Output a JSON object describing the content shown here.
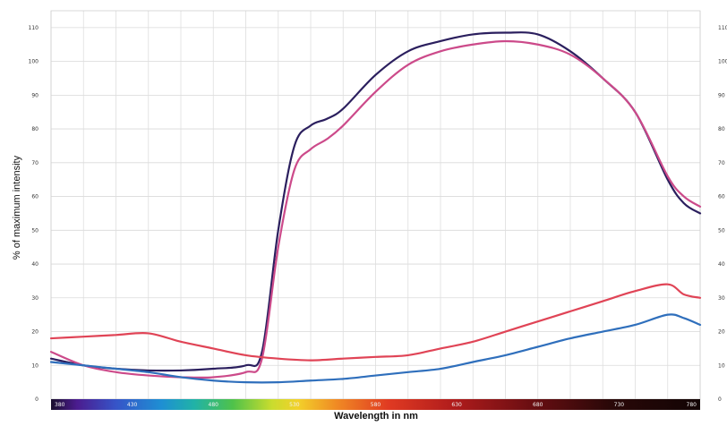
{
  "chart_data": {
    "type": "line",
    "title": "",
    "xlabel": "Wavelength in nm",
    "ylabel": "% of maximum intensity",
    "xlim": [
      380,
      780
    ],
    "ylim": [
      0,
      115
    ],
    "y_ticks": [
      0,
      10,
      20,
      30,
      40,
      50,
      60,
      70,
      80,
      90,
      100,
      110
    ],
    "y_tick_labels": [
      "0",
      "10",
      "20",
      "30",
      "40",
      "50",
      "60",
      "70",
      "80",
      "90",
      "100",
      "110"
    ],
    "spectrum_tick_labels": [
      "380",
      "430",
      "480",
      "530",
      "580",
      "630",
      "680",
      "730",
      "780"
    ],
    "grid": true,
    "legend": "none",
    "series": [
      {
        "color": "#2b1f5e",
        "x": [
          380,
          400,
          420,
          440,
          460,
          480,
          500,
          510,
          520,
          530,
          540,
          550,
          560,
          580,
          600,
          620,
          640,
          660,
          680,
          700,
          720,
          740,
          760,
          770,
          780
        ],
        "y": [
          12,
          10,
          9,
          8.5,
          8.5,
          9,
          10,
          14,
          50,
          75,
          81,
          83,
          86,
          96,
          103,
          106,
          108,
          108.5,
          108,
          103,
          95,
          85,
          65,
          58,
          55
        ]
      },
      {
        "color": "#cc4a8a",
        "x": [
          380,
          400,
          420,
          440,
          460,
          480,
          500,
          510,
          520,
          530,
          540,
          550,
          560,
          580,
          600,
          620,
          640,
          660,
          680,
          700,
          720,
          740,
          760,
          770,
          780
        ],
        "y": [
          14,
          10,
          8,
          7,
          6.5,
          6.5,
          8,
          12,
          45,
          68,
          74,
          77,
          81,
          91,
          99,
          103,
          105,
          106,
          105,
          102,
          95,
          85,
          66,
          60,
          57
        ]
      },
      {
        "color": "#e04456",
        "x": [
          380,
          400,
          420,
          440,
          460,
          480,
          500,
          520,
          540,
          560,
          580,
          600,
          620,
          640,
          660,
          680,
          700,
          720,
          740,
          760,
          770,
          780
        ],
        "y": [
          18,
          18.5,
          19,
          19.5,
          17,
          15,
          13,
          12,
          11.5,
          12,
          12.5,
          13,
          15,
          17,
          20,
          23,
          26,
          29,
          32,
          34,
          31,
          30
        ]
      },
      {
        "color": "#2f6fbc",
        "x": [
          380,
          400,
          420,
          440,
          460,
          480,
          500,
          520,
          540,
          560,
          580,
          600,
          620,
          640,
          660,
          680,
          700,
          720,
          740,
          760,
          770,
          780
        ],
        "y": [
          11,
          10,
          9,
          8,
          6.5,
          5.5,
          5,
          5,
          5.5,
          6,
          7,
          8,
          9,
          11,
          13,
          15.5,
          18,
          20,
          22,
          25,
          24,
          22
        ]
      }
    ]
  }
}
